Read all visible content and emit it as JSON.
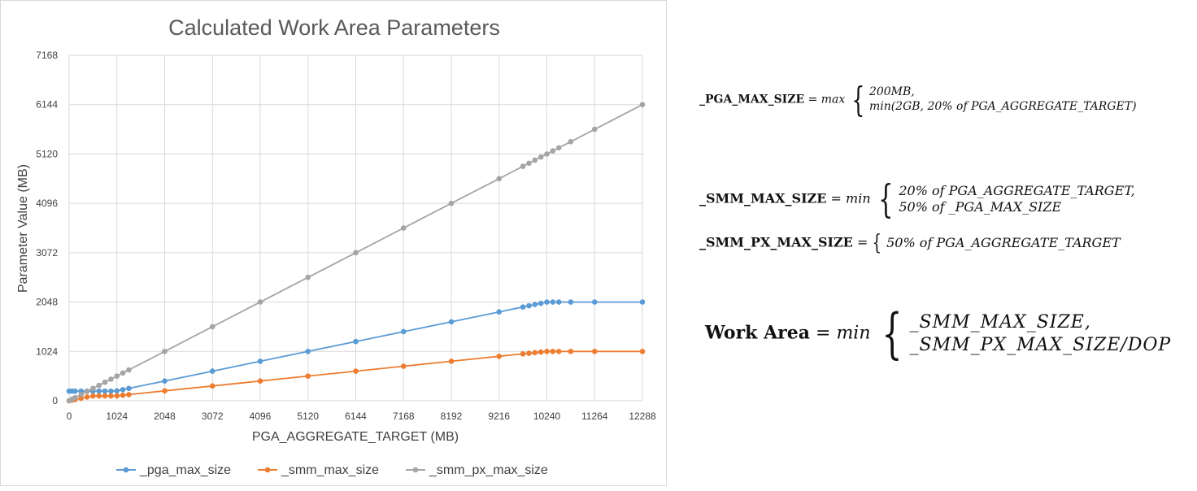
{
  "chart_data": {
    "type": "line",
    "title": "Calculated Work Area Parameters",
    "xlabel": "PGA_AGGREGATE_TARGET  (MB)",
    "ylabel": "Parameter Value (MB)",
    "xlim": [
      0,
      12288
    ],
    "ylim": [
      0,
      7168
    ],
    "xticks": [
      0,
      1024,
      2048,
      3072,
      4096,
      5120,
      6144,
      7168,
      8192,
      9216,
      10240,
      11264,
      12288
    ],
    "yticks": [
      0,
      1024,
      2048,
      3072,
      4096,
      5120,
      6144,
      7168
    ],
    "grid": true,
    "legend_position": "bottom",
    "x": [
      0,
      64,
      128,
      256,
      384,
      512,
      640,
      768,
      896,
      1024,
      1152,
      1280,
      2048,
      3072,
      4096,
      5120,
      6144,
      7168,
      8192,
      9216,
      9728,
      9856,
      9984,
      10112,
      10240,
      10368,
      10496,
      10752,
      11264,
      12288
    ],
    "series": [
      {
        "name": "_pga_max_size",
        "color": "#5b9bd5",
        "values": [
          200,
          200,
          200,
          200,
          200,
          200,
          200,
          200,
          200,
          205,
          230,
          256,
          410,
          614,
          819,
          1024,
          1229,
          1434,
          1638,
          1843,
          1946,
          1971,
          1997,
          2022,
          2048,
          2048,
          2048,
          2048,
          2048,
          2048
        ]
      },
      {
        "name": "_smm_max_size",
        "color": "#ed7d31",
        "values": [
          0,
          13,
          26,
          51,
          77,
          100,
          100,
          100,
          100,
          102,
          115,
          128,
          205,
          307,
          410,
          512,
          614,
          717,
          819,
          922,
          973,
          986,
          998,
          1011,
          1024,
          1024,
          1024,
          1024,
          1024,
          1024
        ]
      },
      {
        "name": "_smm_px_max_size",
        "color": "#a5a5a5",
        "values": [
          0,
          32,
          64,
          128,
          192,
          256,
          320,
          384,
          448,
          512,
          576,
          640,
          1024,
          1536,
          2048,
          2560,
          3072,
          3584,
          4096,
          4608,
          4864,
          4928,
          4992,
          5056,
          5120,
          5184,
          5248,
          5376,
          5632,
          6144
        ]
      }
    ]
  },
  "formulas": {
    "pga_max": {
      "lhs": "_PGA_MAX_SIZE",
      "eq": "=",
      "fn": "max",
      "cases": [
        "200MB,",
        "min(2GB, 20% of PGA_AGGREGATE_TARGET)"
      ]
    },
    "smm_max": {
      "lhs": "_SMM_MAX_SIZE",
      "eq": "=",
      "fn": "min",
      "cases": [
        "20% of PGA_AGGREGATE_TARGET,",
        "50% of _PGA_MAX_SIZE"
      ]
    },
    "smm_px_max": {
      "lhs": "_SMM_PX_MAX_SIZE",
      "eq": "=",
      "cases": [
        "50% of PGA_AGGREGATE_TARGET"
      ]
    },
    "work_area": {
      "lhs": "Work Area",
      "eq": "=",
      "fn": "min",
      "cases": [
        "_SMM_MAX_SIZE,",
        "_SMM_PX_MAX_SIZE/DOP"
      ]
    }
  }
}
